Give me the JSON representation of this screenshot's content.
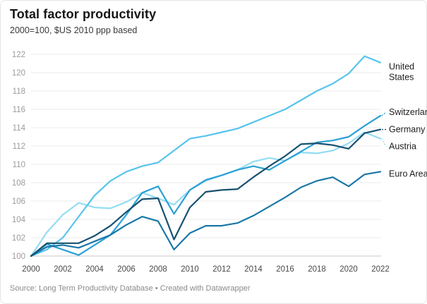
{
  "header": {
    "title": "Total factor productivity",
    "subtitle": "2000=100, $US 2010 ppp based"
  },
  "footer": {
    "source": "Source: Long Term Productivity Database • Created with Datawrapper"
  },
  "chart_data": {
    "type": "line",
    "title": "Total factor productivity",
    "subtitle": "2000=100, $US 2010 ppp based",
    "xlabel": "",
    "ylabel": "",
    "xlim": [
      2000,
      2022
    ],
    "ylim": [
      100,
      122
    ],
    "grid": true,
    "legend_position": "right-of-line-ends",
    "x": [
      2000,
      2001,
      2002,
      2003,
      2004,
      2005,
      2006,
      2007,
      2008,
      2009,
      2010,
      2011,
      2012,
      2013,
      2014,
      2015,
      2016,
      2017,
      2018,
      2019,
      2020,
      2021,
      2022
    ],
    "x_tick_labels": [
      "2000",
      "2002",
      "2004",
      "2006",
      "2008",
      "2010",
      "2012",
      "2014",
      "2016",
      "2018",
      "2020",
      "2022"
    ],
    "y_ticks": [
      100,
      102,
      104,
      106,
      108,
      110,
      112,
      114,
      116,
      118,
      120,
      122
    ],
    "series": [
      {
        "name": "Austria",
        "label_lines": [
          "Austria"
        ],
        "color": "#94dcf4",
        "values": [
          100,
          102.6,
          104.5,
          105.8,
          105.3,
          105.2,
          105.9,
          106.9,
          106.3,
          105.6,
          107.2,
          108.2,
          108.8,
          109.4,
          110.3,
          110.7,
          110.4,
          111.3,
          111.2,
          111.5,
          112.3,
          113.5,
          112.8
        ]
      },
      {
        "name": "United States",
        "label_lines": [
          "United",
          "States"
        ],
        "color": "#58c4ee",
        "values": [
          100,
          100.7,
          102.0,
          104.3,
          106.6,
          108.2,
          109.2,
          109.8,
          110.2,
          111.5,
          112.8,
          113.1,
          113.5,
          113.9,
          114.6,
          115.3,
          116.0,
          117.0,
          118.0,
          118.8,
          119.9,
          121.8,
          121.1
        ]
      },
      {
        "name": "Switzerland",
        "label_lines": [
          "Switzerland"
        ],
        "color": "#2aa0d5",
        "values": [
          100,
          101.3,
          100.7,
          100.1,
          101.2,
          102.3,
          104.5,
          106.9,
          107.6,
          104.6,
          107.2,
          108.3,
          108.8,
          109.4,
          109.8,
          109.4,
          110.4,
          111.4,
          112.4,
          112.6,
          113.0,
          114.2,
          115.3
        ]
      },
      {
        "name": "Euro Area",
        "label_lines": [
          "Euro Area"
        ],
        "color": "#1878a8",
        "values": [
          100,
          101.0,
          101.2,
          100.9,
          101.6,
          102.3,
          103.4,
          104.3,
          103.8,
          100.7,
          102.5,
          103.3,
          103.3,
          103.6,
          104.4,
          105.4,
          106.4,
          107.5,
          108.2,
          108.6,
          107.6,
          108.9,
          109.2
        ]
      },
      {
        "name": "Germany",
        "label_lines": [
          "Germany"
        ],
        "color": "#17516f",
        "values": [
          100,
          101.4,
          101.4,
          101.4,
          102.2,
          103.3,
          104.8,
          106.2,
          106.3,
          101.8,
          105.3,
          107.0,
          107.2,
          107.3,
          108.6,
          109.8,
          110.9,
          112.2,
          112.3,
          112.1,
          111.7,
          113.4,
          113.8
        ]
      }
    ]
  }
}
